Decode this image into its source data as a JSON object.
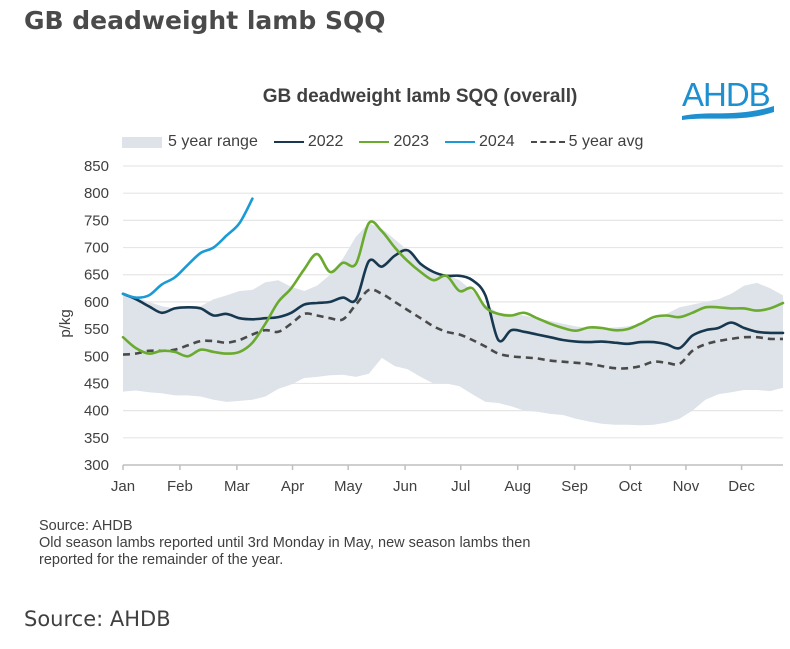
{
  "page": {
    "title": "GB deadweight lamb SQQ",
    "source": "Source: AHDB"
  },
  "logo": {
    "text": "AHDB",
    "color": "#1e8fcf"
  },
  "notes": {
    "source": "Source: AHDB",
    "line1": "Old season lambs reported until 3rd Monday in May, new season lambs then",
    "line2": "reported for the remainder of the year."
  },
  "chart_data": {
    "type": "line",
    "title": "GB deadweight lamb SQQ (overall)",
    "xlabel": "",
    "ylabel": "p/kg",
    "ylim": [
      300,
      850
    ],
    "yticks": [
      300,
      350,
      400,
      450,
      500,
      550,
      600,
      650,
      700,
      750,
      800,
      850
    ],
    "x_unit": "week",
    "xlim": [
      1,
      52
    ],
    "month_ticks": [
      {
        "label": "Jan",
        "week": 1
      },
      {
        "label": "Feb",
        "week": 5.4
      },
      {
        "label": "Mar",
        "week": 9.8
      },
      {
        "label": "Apr",
        "week": 14.1
      },
      {
        "label": "May",
        "week": 18.4
      },
      {
        "label": "Jun",
        "week": 22.8
      },
      {
        "label": "Jul",
        "week": 27.1
      },
      {
        "label": "Aug",
        "week": 31.5
      },
      {
        "label": "Sep",
        "week": 35.9
      },
      {
        "label": "Oct",
        "week": 40.2
      },
      {
        "label": "Nov",
        "week": 44.5
      },
      {
        "label": "Dec",
        "week": 48.8
      }
    ],
    "grid": true,
    "legend": {
      "position": "top",
      "entries": [
        {
          "label": "5 year range",
          "kind": "band",
          "color": "#dde3e8"
        },
        {
          "label": "2022",
          "kind": "line",
          "color": "#17384f"
        },
        {
          "label": "2023",
          "kind": "line",
          "color": "#6aaa2e"
        },
        {
          "label": "2024",
          "kind": "line",
          "color": "#1b9ad6"
        },
        {
          "label": "5 year avg",
          "kind": "dash",
          "color": "#4a4a4a"
        }
      ]
    },
    "range_band": {
      "name": "5 year range",
      "color": "#dde3e8",
      "weeks": [
        1,
        2,
        3,
        4,
        5,
        6,
        7,
        8,
        9,
        10,
        11,
        12,
        13,
        14,
        15,
        16,
        17,
        18,
        19,
        20,
        21,
        22,
        23,
        24,
        25,
        26,
        27,
        28,
        29,
        30,
        31,
        32,
        33,
        34,
        35,
        36,
        37,
        38,
        39,
        40,
        41,
        42,
        43,
        44,
        45,
        46,
        47,
        48,
        49,
        50,
        51,
        52
      ],
      "upper": [
        615,
        608,
        600,
        592,
        588,
        590,
        592,
        605,
        612,
        620,
        622,
        636,
        640,
        628,
        620,
        630,
        650,
        680,
        720,
        745,
        735,
        715,
        695,
        670,
        655,
        650,
        640,
        620,
        595,
        580,
        578,
        575,
        570,
        565,
        560,
        555,
        552,
        552,
        553,
        555,
        560,
        568,
        578,
        590,
        595,
        600,
        605,
        615,
        630,
        635,
        625,
        612
      ],
      "lower": [
        435,
        437,
        434,
        432,
        428,
        428,
        426,
        420,
        416,
        418,
        420,
        426,
        440,
        448,
        460,
        462,
        465,
        466,
        462,
        468,
        497,
        482,
        476,
        462,
        450,
        450,
        445,
        430,
        416,
        414,
        408,
        400,
        398,
        394,
        392,
        385,
        380,
        376,
        374,
        374,
        373,
        374,
        378,
        385,
        400,
        420,
        430,
        434,
        438,
        438,
        436,
        442
      ]
    },
    "series": [
      {
        "name": "2022",
        "color": "#17384f",
        "style": "solid",
        "weeks": [
          1,
          2,
          3,
          4,
          5,
          6,
          7,
          8,
          9,
          10,
          11,
          12,
          13,
          14,
          15,
          16,
          17,
          18,
          19,
          20,
          21,
          22,
          23,
          24,
          25,
          26,
          27,
          28,
          29,
          30,
          31,
          32,
          33,
          34,
          35,
          36,
          37,
          38,
          39,
          40,
          41,
          42,
          43,
          44,
          45,
          46,
          47,
          48,
          49,
          50,
          51,
          52
        ],
        "values": [
          615,
          605,
          592,
          580,
          588,
          590,
          588,
          575,
          578,
          570,
          568,
          570,
          572,
          580,
          595,
          598,
          600,
          608,
          604,
          675,
          665,
          685,
          695,
          670,
          655,
          648,
          648,
          640,
          612,
          530,
          548,
          545,
          540,
          535,
          530,
          527,
          526,
          527,
          525,
          523,
          526,
          526,
          522,
          515,
          538,
          548,
          552,
          562,
          552,
          545,
          543,
          543
        ]
      },
      {
        "name": "2023",
        "color": "#6aaa2e",
        "style": "solid",
        "weeks": [
          1,
          2,
          3,
          4,
          5,
          6,
          7,
          8,
          9,
          10,
          11,
          12,
          13,
          14,
          15,
          16,
          17,
          18,
          19,
          20,
          21,
          22,
          23,
          24,
          25,
          26,
          27,
          28,
          29,
          30,
          31,
          32,
          33,
          34,
          35,
          36,
          37,
          38,
          39,
          40,
          41,
          42,
          43,
          44,
          45,
          46,
          47,
          48,
          49,
          50,
          51,
          52
        ],
        "values": [
          535,
          515,
          505,
          510,
          508,
          500,
          512,
          508,
          505,
          508,
          525,
          560,
          600,
          625,
          660,
          688,
          655,
          672,
          670,
          745,
          730,
          700,
          675,
          655,
          640,
          648,
          620,
          625,
          590,
          578,
          575,
          580,
          570,
          560,
          552,
          547,
          553,
          552,
          548,
          550,
          560,
          572,
          575,
          572,
          580,
          590,
          590,
          588,
          588,
          584,
          588,
          598
        ]
      },
      {
        "name": "2024",
        "color": "#1b9ad6",
        "style": "solid",
        "weeks": [
          1,
          2,
          3,
          4,
          5,
          6,
          7,
          8,
          9,
          10,
          11
        ],
        "values": [
          615,
          608,
          612,
          632,
          645,
          668,
          690,
          700,
          722,
          745,
          790
        ]
      },
      {
        "name": "5 year avg",
        "color": "#4a4a4a",
        "style": "dashed",
        "weeks": [
          1,
          2,
          3,
          4,
          5,
          6,
          7,
          8,
          9,
          10,
          11,
          12,
          13,
          14,
          15,
          16,
          17,
          18,
          19,
          20,
          21,
          22,
          23,
          24,
          25,
          26,
          27,
          28,
          29,
          30,
          31,
          32,
          33,
          34,
          35,
          36,
          37,
          38,
          39,
          40,
          41,
          42,
          43,
          44,
          45,
          46,
          47,
          48,
          49,
          50,
          51,
          52
        ],
        "values": [
          503,
          505,
          510,
          510,
          512,
          520,
          528,
          528,
          525,
          530,
          540,
          548,
          545,
          560,
          578,
          575,
          570,
          568,
          595,
          622,
          615,
          600,
          585,
          570,
          555,
          545,
          540,
          530,
          518,
          505,
          500,
          498,
          496,
          492,
          490,
          488,
          486,
          482,
          478,
          478,
          482,
          490,
          488,
          486,
          510,
          522,
          528,
          532,
          535,
          535,
          532,
          532
        ]
      }
    ]
  }
}
